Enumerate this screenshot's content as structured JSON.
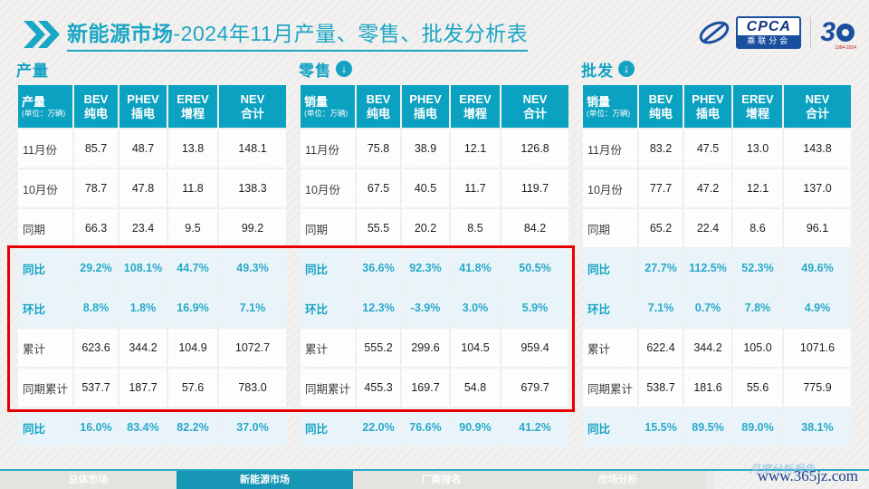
{
  "header": {
    "title_bold": "新能源市场",
    "title_rest": "-2024年11月产量、零售、批发分析表"
  },
  "logo": {
    "cpca": "CPCA",
    "cpca_sub": "乘联分会",
    "anniversary_number": "3",
    "anniversary_years": "1994-2024"
  },
  "tables": [
    {
      "id": "production",
      "section": "产量",
      "arrow": false,
      "unit_header": {
        "title": "产量",
        "unit": "(单位：万辆)"
      },
      "columns": [
        {
          "en": "BEV",
          "cn": "纯电"
        },
        {
          "en": "PHEV",
          "cn": "插电"
        },
        {
          "en": "EREV",
          "cn": "增程"
        },
        {
          "en": "NEV",
          "cn": "合计"
        }
      ],
      "rows": [
        {
          "label": "11月份",
          "style": "plain",
          "values": [
            "85.7",
            "48.7",
            "13.8",
            "148.1"
          ]
        },
        {
          "label": "10月份",
          "style": "plain",
          "values": [
            "78.7",
            "47.8",
            "11.8",
            "138.3"
          ]
        },
        {
          "label": "同期",
          "style": "plain",
          "values": [
            "66.3",
            "23.4",
            "9.5",
            "99.2"
          ]
        },
        {
          "label": "同比",
          "style": "highlight",
          "values": [
            "29.2%",
            "108.1%",
            "44.7%",
            "49.3%"
          ]
        },
        {
          "label": "环比",
          "style": "highlight",
          "values": [
            "8.8%",
            "1.8%",
            "16.9%",
            "7.1%"
          ]
        },
        {
          "label": "累计",
          "style": "plain",
          "values": [
            "623.6",
            "344.2",
            "104.9",
            "1072.7"
          ]
        },
        {
          "label": "同期累计",
          "style": "plain",
          "values": [
            "537.7",
            "187.7",
            "57.6",
            "783.0"
          ]
        },
        {
          "label": "同比",
          "style": "highlight",
          "values": [
            "16.0%",
            "83.4%",
            "82.2%",
            "37.0%"
          ]
        }
      ]
    },
    {
      "id": "retail",
      "section": "零售",
      "arrow": true,
      "unit_header": {
        "title": "销量",
        "unit": "(单位：万辆)"
      },
      "columns": [
        {
          "en": "BEV",
          "cn": "纯电"
        },
        {
          "en": "PHEV",
          "cn": "插电"
        },
        {
          "en": "EREV",
          "cn": "增程"
        },
        {
          "en": "NEV",
          "cn": "合计"
        }
      ],
      "rows": [
        {
          "label": "11月份",
          "style": "plain",
          "values": [
            "75.8",
            "38.9",
            "12.1",
            "126.8"
          ]
        },
        {
          "label": "10月份",
          "style": "plain",
          "values": [
            "67.5",
            "40.5",
            "11.7",
            "119.7"
          ]
        },
        {
          "label": "同期",
          "style": "plain",
          "values": [
            "55.5",
            "20.2",
            "8.5",
            "84.2"
          ]
        },
        {
          "label": "同比",
          "style": "highlight",
          "values": [
            "36.6%",
            "92.3%",
            "41.8%",
            "50.5%"
          ]
        },
        {
          "label": "环比",
          "style": "highlight",
          "values": [
            "12.3%",
            "-3.9%",
            "3.0%",
            "5.9%"
          ]
        },
        {
          "label": "累计",
          "style": "plain",
          "values": [
            "555.2",
            "299.6",
            "104.5",
            "959.4"
          ]
        },
        {
          "label": "同期累计",
          "style": "plain",
          "values": [
            "455.3",
            "169.7",
            "54.8",
            "679.7"
          ]
        },
        {
          "label": "同比",
          "style": "highlight",
          "values": [
            "22.0%",
            "76.6%",
            "90.9%",
            "41.2%"
          ]
        }
      ]
    },
    {
      "id": "wholesale",
      "section": "批发",
      "arrow": true,
      "unit_header": {
        "title": "销量",
        "unit": "(单位：万辆)"
      },
      "columns": [
        {
          "en": "BEV",
          "cn": "纯电"
        },
        {
          "en": "PHEV",
          "cn": "插电"
        },
        {
          "en": "EREV",
          "cn": "增程"
        },
        {
          "en": "NEV",
          "cn": "合计"
        }
      ],
      "rows": [
        {
          "label": "11月份",
          "style": "plain",
          "values": [
            "83.2",
            "47.5",
            "13.0",
            "143.8"
          ]
        },
        {
          "label": "10月份",
          "style": "plain",
          "values": [
            "77.7",
            "47.2",
            "12.1",
            "137.0"
          ]
        },
        {
          "label": "同期",
          "style": "plain",
          "values": [
            "65.2",
            "22.4",
            "8.6",
            "96.1"
          ]
        },
        {
          "label": "同比",
          "style": "highlight",
          "values": [
            "27.7%",
            "112.5%",
            "52.3%",
            "49.6%"
          ]
        },
        {
          "label": "环比",
          "style": "highlight",
          "values": [
            "7.1%",
            "0.7%",
            "7.8%",
            "4.9%"
          ]
        },
        {
          "label": "累计",
          "style": "plain",
          "values": [
            "622.4",
            "344.2",
            "105.0",
            "1071.6"
          ]
        },
        {
          "label": "同期累计",
          "style": "plain",
          "values": [
            "538.7",
            "181.6",
            "55.6",
            "775.9"
          ]
        },
        {
          "label": "同比",
          "style": "highlight",
          "values": [
            "15.5%",
            "89.5%",
            "89.0%",
            "38.1%"
          ]
        }
      ]
    }
  ],
  "footer": {
    "tabs": [
      {
        "label": "总体市场",
        "active": false
      },
      {
        "label": "新能源市场",
        "active": true
      },
      {
        "label": "厂商排名",
        "active": false
      },
      {
        "label": "市场分析",
        "active": false
      }
    ],
    "calligraphy_note": "月度分析报告",
    "site_watermark": "www.365jz.com"
  },
  "colors": {
    "accent_teal": "#15a2c2",
    "header_cell_teal": "#0ba1c0",
    "highlight_row_bg": "#e8f4f9",
    "alert_red_box": "#e60000",
    "logo_blue": "#1a4fa0"
  }
}
